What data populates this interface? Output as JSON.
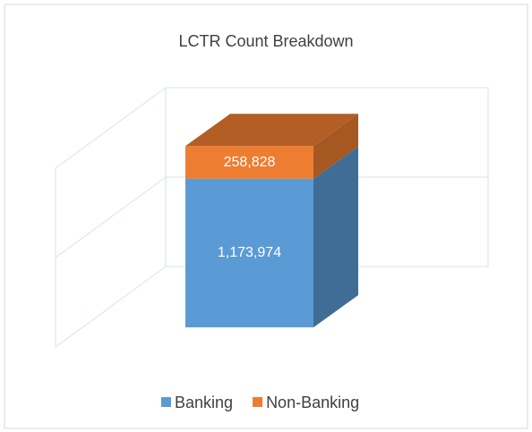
{
  "chart_data": {
    "type": "bar3d_stacked",
    "title": "LCTR Count Breakdown",
    "categories": [
      null
    ],
    "series": [
      {
        "name": "Banking",
        "color": "#5b9bd5",
        "values": [
          1173974
        ],
        "value_labels": [
          "1,173,974"
        ]
      },
      {
        "name": "Non-Banking",
        "color": "#ed7d31",
        "values": [
          258828
        ],
        "value_labels": [
          "258,828"
        ]
      }
    ],
    "ylim": [
      0,
      2000000
    ],
    "yticks": [
      0,
      1000000,
      2000000
    ],
    "grid": true,
    "legend": "bottom"
  }
}
